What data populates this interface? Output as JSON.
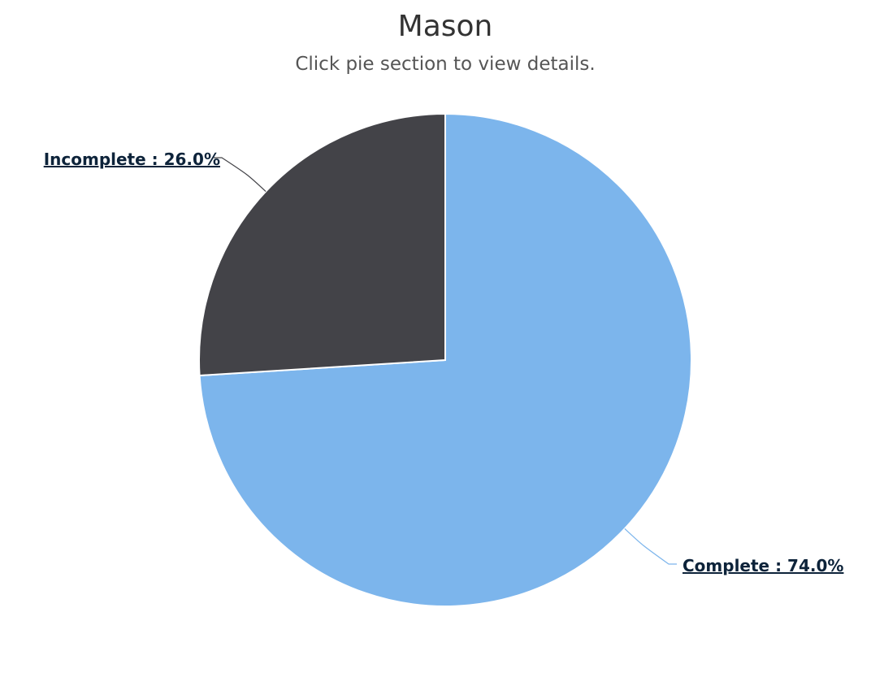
{
  "title": "Mason",
  "subtitle": "Click pie section to view details.",
  "colors": {
    "complete": "#7cb5ec",
    "incomplete": "#434348",
    "label_text": "#0d233a",
    "slice_border": "#ffffff"
  },
  "chart_data": {
    "type": "pie",
    "title": "Mason",
    "subtitle": "Click pie section to view details.",
    "series": [
      {
        "name": "",
        "points": [
          {
            "category": "Complete",
            "value": 74.0,
            "label": "Complete : 74.0%",
            "color": "#7cb5ec"
          },
          {
            "category": "Incomplete",
            "value": 26.0,
            "label": "Incomplete : 26.0%",
            "color": "#434348"
          }
        ]
      }
    ]
  }
}
